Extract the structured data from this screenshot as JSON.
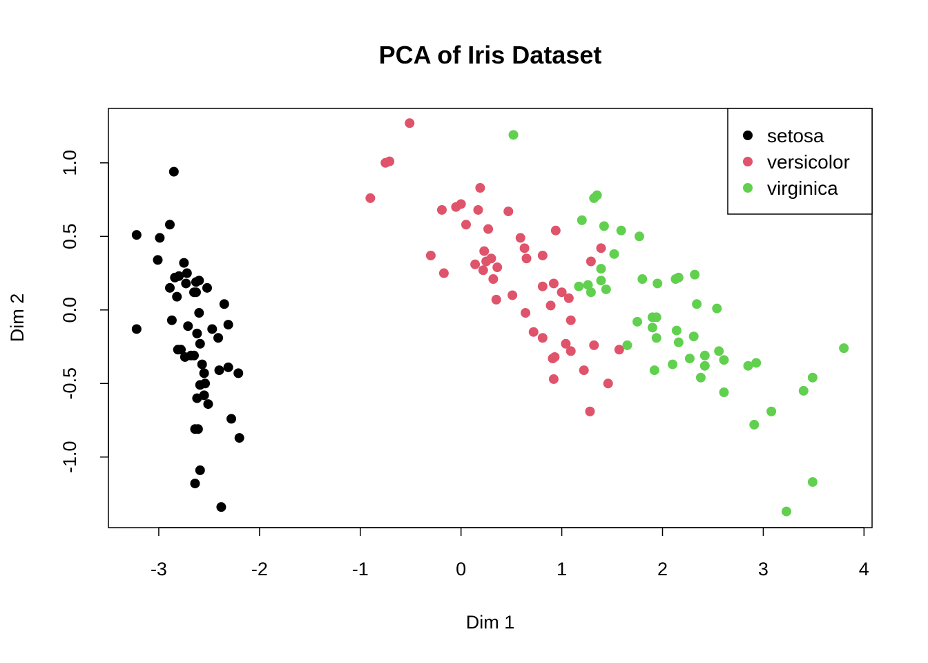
{
  "chart_data": {
    "type": "scatter",
    "title": "PCA of Iris Dataset",
    "xlabel": "Dim 1",
    "ylabel": "Dim 2",
    "xlim": [
      -3.5,
      4.08
    ],
    "ylim": [
      -1.48,
      1.37
    ],
    "x_ticks": [
      "-3",
      "-2",
      "-1",
      "0",
      "1",
      "2",
      "3",
      "4"
    ],
    "y_ticks": [
      "-1.0",
      "-0.5",
      "0.0",
      "0.5",
      "1.0"
    ],
    "grid": false,
    "legend_position": "top-right",
    "series": [
      {
        "name": "setosa",
        "color": "#000000",
        "points": [
          [
            -2.85,
            0.94
          ],
          [
            -3.22,
            0.51
          ],
          [
            -2.89,
            0.58
          ],
          [
            -2.99,
            0.49
          ],
          [
            -3.01,
            0.34
          ],
          [
            -2.75,
            0.32
          ],
          [
            -2.72,
            0.25
          ],
          [
            -2.8,
            0.23
          ],
          [
            -2.84,
            0.22
          ],
          [
            -2.73,
            0.18
          ],
          [
            -2.6,
            0.2
          ],
          [
            -2.63,
            0.19
          ],
          [
            -2.52,
            0.15
          ],
          [
            -2.89,
            0.15
          ],
          [
            -2.65,
            0.12
          ],
          [
            -2.63,
            0.12
          ],
          [
            -2.82,
            0.09
          ],
          [
            -2.35,
            0.04
          ],
          [
            -2.6,
            -0.02
          ],
          [
            -2.87,
            -0.07
          ],
          [
            -2.31,
            -0.1
          ],
          [
            -2.71,
            -0.11
          ],
          [
            -3.22,
            -0.13
          ],
          [
            -2.47,
            -0.13
          ],
          [
            -2.62,
            -0.16
          ],
          [
            -2.41,
            -0.19
          ],
          [
            -2.59,
            -0.23
          ],
          [
            -2.78,
            -0.27
          ],
          [
            -2.81,
            -0.27
          ],
          [
            -2.74,
            -0.32
          ],
          [
            -2.68,
            -0.31
          ],
          [
            -2.65,
            -0.31
          ],
          [
            -2.57,
            -0.37
          ],
          [
            -2.31,
            -0.39
          ],
          [
            -2.4,
            -0.41
          ],
          [
            -2.21,
            -0.43
          ],
          [
            -2.55,
            -0.43
          ],
          [
            -2.54,
            -0.5
          ],
          [
            -2.59,
            -0.51
          ],
          [
            -2.55,
            -0.58
          ],
          [
            -2.62,
            -0.6
          ],
          [
            -2.51,
            -0.64
          ],
          [
            -2.28,
            -0.74
          ],
          [
            -2.64,
            -0.81
          ],
          [
            -2.61,
            -0.81
          ],
          [
            -2.2,
            -0.87
          ],
          [
            -2.59,
            -1.09
          ],
          [
            -2.64,
            -1.18
          ],
          [
            -2.38,
            -1.34
          ]
        ]
      },
      {
        "name": "versicolor",
        "color": "#df536b",
        "points": [
          [
            -0.51,
            1.27
          ],
          [
            -0.75,
            1.0
          ],
          [
            -0.71,
            1.01
          ],
          [
            -0.9,
            0.76
          ],
          [
            0.19,
            0.83
          ],
          [
            0.0,
            0.72
          ],
          [
            -0.05,
            0.7
          ],
          [
            -0.19,
            0.68
          ],
          [
            0.17,
            0.68
          ],
          [
            0.47,
            0.67
          ],
          [
            0.05,
            0.58
          ],
          [
            0.27,
            0.55
          ],
          [
            0.94,
            0.54
          ],
          [
            0.59,
            0.49
          ],
          [
            0.63,
            0.42
          ],
          [
            1.39,
            0.42
          ],
          [
            0.23,
            0.4
          ],
          [
            -0.3,
            0.37
          ],
          [
            0.81,
            0.37
          ],
          [
            0.65,
            0.35
          ],
          [
            0.3,
            0.35
          ],
          [
            0.25,
            0.33
          ],
          [
            1.29,
            0.33
          ],
          [
            0.14,
            0.31
          ],
          [
            0.36,
            0.29
          ],
          [
            0.22,
            0.27
          ],
          [
            -0.17,
            0.25
          ],
          [
            0.32,
            0.21
          ],
          [
            0.92,
            0.18
          ],
          [
            0.81,
            0.16
          ],
          [
            1.0,
            0.12
          ],
          [
            1.07,
            0.08
          ],
          [
            0.51,
            0.1
          ],
          [
            0.35,
            0.07
          ],
          [
            0.89,
            0.03
          ],
          [
            0.64,
            -0.02
          ],
          [
            1.09,
            -0.07
          ],
          [
            0.72,
            -0.15
          ],
          [
            0.81,
            -0.19
          ],
          [
            1.04,
            -0.23
          ],
          [
            1.32,
            -0.24
          ],
          [
            1.09,
            -0.28
          ],
          [
            1.57,
            -0.27
          ],
          [
            0.93,
            -0.32
          ],
          [
            0.91,
            -0.33
          ],
          [
            1.22,
            -0.41
          ],
          [
            0.92,
            -0.47
          ],
          [
            1.46,
            -0.5
          ],
          [
            1.28,
            -0.69
          ]
        ]
      },
      {
        "name": "virginica",
        "color": "#61d04f",
        "points": [
          [
            0.52,
            1.19
          ],
          [
            1.35,
            0.78
          ],
          [
            1.32,
            0.76
          ],
          [
            1.2,
            0.61
          ],
          [
            1.42,
            0.57
          ],
          [
            1.59,
            0.54
          ],
          [
            1.77,
            0.5
          ],
          [
            1.52,
            0.38
          ],
          [
            1.39,
            0.28
          ],
          [
            2.32,
            0.24
          ],
          [
            2.16,
            0.22
          ],
          [
            2.13,
            0.21
          ],
          [
            1.8,
            0.21
          ],
          [
            1.39,
            0.2
          ],
          [
            1.95,
            0.18
          ],
          [
            1.26,
            0.17
          ],
          [
            1.17,
            0.16
          ],
          [
            1.44,
            0.14
          ],
          [
            1.29,
            0.12
          ],
          [
            2.34,
            0.04
          ],
          [
            2.54,
            0.01
          ],
          [
            1.94,
            -0.05
          ],
          [
            1.9,
            -0.05
          ],
          [
            1.75,
            -0.08
          ],
          [
            1.9,
            -0.12
          ],
          [
            2.14,
            -0.14
          ],
          [
            2.31,
            -0.18
          ],
          [
            1.94,
            -0.19
          ],
          [
            2.16,
            -0.22
          ],
          [
            1.65,
            -0.24
          ],
          [
            3.8,
            -0.26
          ],
          [
            2.56,
            -0.28
          ],
          [
            2.42,
            -0.31
          ],
          [
            2.27,
            -0.33
          ],
          [
            2.61,
            -0.34
          ],
          [
            2.93,
            -0.36
          ],
          [
            2.85,
            -0.38
          ],
          [
            2.42,
            -0.38
          ],
          [
            2.1,
            -0.37
          ],
          [
            1.92,
            -0.41
          ],
          [
            3.49,
            -0.46
          ],
          [
            2.38,
            -0.46
          ],
          [
            3.4,
            -0.55
          ],
          [
            2.61,
            -0.56
          ],
          [
            3.08,
            -0.69
          ],
          [
            2.91,
            -0.78
          ],
          [
            3.49,
            -1.17
          ],
          [
            3.23,
            -1.37
          ]
        ]
      }
    ]
  }
}
